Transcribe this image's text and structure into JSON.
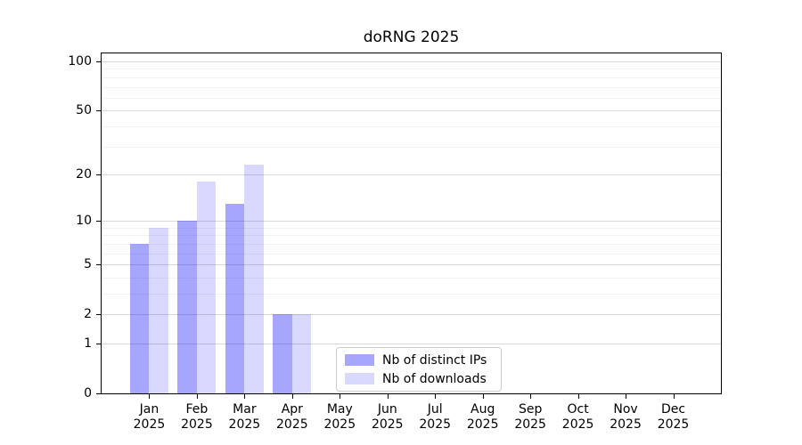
{
  "chart_data": {
    "type": "bar",
    "title": "doRNG 2025",
    "categories": [
      "Jan",
      "Feb",
      "Mar",
      "Apr",
      "May",
      "Jun",
      "Jul",
      "Aug",
      "Sep",
      "Oct",
      "Nov",
      "Dec"
    ],
    "category_year": "2025",
    "series": [
      {
        "name": "Nb of distinct IPs",
        "color": "rgba(0,0,255,0.35)",
        "values": [
          7,
          10,
          13,
          2,
          0,
          0,
          0,
          0,
          0,
          0,
          0,
          0
        ]
      },
      {
        "name": "Nb of downloads",
        "color": "rgba(0,0,255,0.15)",
        "values": [
          9,
          18,
          23,
          2,
          0,
          0,
          0,
          0,
          0,
          0,
          0,
          0
        ]
      }
    ],
    "xlabel": "",
    "ylabel": "",
    "y_scale": "log1p",
    "ylim": [
      0,
      112
    ],
    "y_ticks": [
      0,
      1,
      2,
      5,
      10,
      20,
      50,
      100
    ],
    "y_minor_gridlines": [
      3,
      4,
      6,
      7,
      8,
      9,
      30,
      40,
      60,
      70,
      80,
      90
    ],
    "grid": true,
    "legend_position": "lower center",
    "grid_colors": {
      "major": "#d9d9d9",
      "minor": "#f2f2f2"
    },
    "axis_color": "#000000",
    "background_color": "#ffffff"
  }
}
